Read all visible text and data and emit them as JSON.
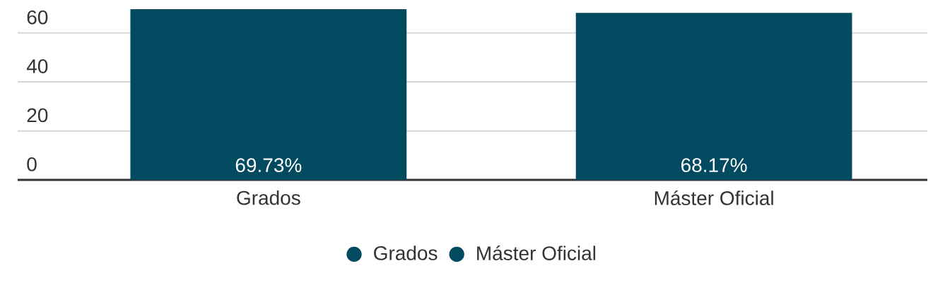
{
  "chart_data": {
    "type": "bar",
    "categories": [
      "Grados",
      "Máster Oficial"
    ],
    "series": [
      {
        "name": "Grados",
        "color": "#024a60",
        "values": [
          69.73,
          null
        ],
        "value_labels": [
          "69.73%",
          null
        ]
      },
      {
        "name": "Máster Oficial",
        "color": "#024a60",
        "values": [
          null,
          68.17
        ],
        "value_labels": [
          null,
          "68.17%"
        ]
      }
    ],
    "ylim": [
      0,
      70
    ],
    "yticks": [
      0,
      20,
      40,
      60
    ],
    "grid": "y",
    "legend": "bottom"
  }
}
